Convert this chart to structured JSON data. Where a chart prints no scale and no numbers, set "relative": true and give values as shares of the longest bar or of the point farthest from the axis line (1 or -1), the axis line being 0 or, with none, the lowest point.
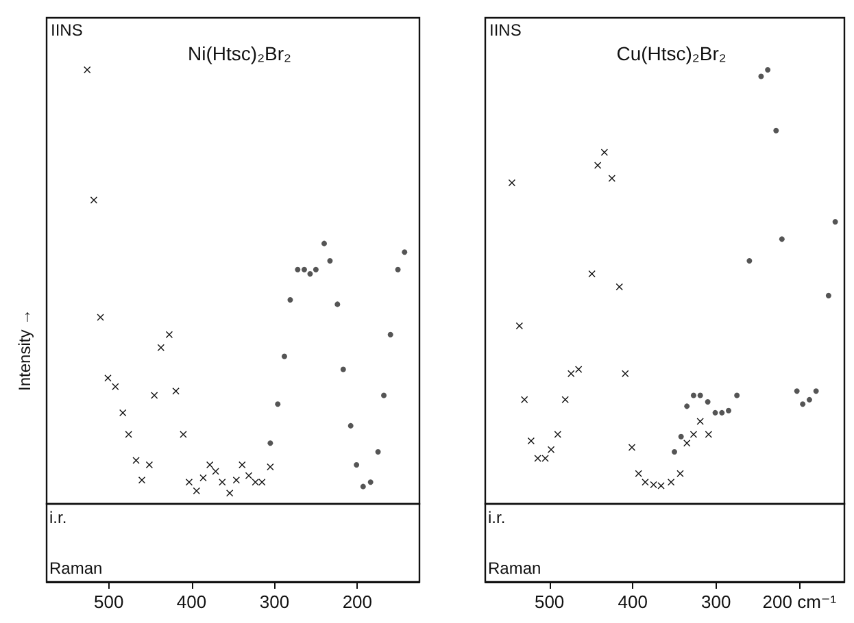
{
  "chart_data": [
    {
      "type": "scatter",
      "title": "Ni(Htsc)₂Br₂",
      "ylabel": "Intensity →",
      "relative": true,
      "tick_labels": "x",
      "grid": false,
      "annotations": [
        "IINS",
        "i.r.",
        "Raman"
      ],
      "xlim": [
        575,
        125
      ],
      "xticks": [
        500,
        400,
        300,
        200
      ],
      "series": [
        {
          "color": "#111111",
          "marker": "cross",
          "x": [
            526,
            518,
            510,
            501,
            492,
            483,
            476,
            467,
            460,
            451,
            445,
            437,
            427,
            419,
            410,
            403,
            394,
            386,
            378,
            371,
            363,
            354,
            346,
            339,
            331,
            323,
            315,
            305
          ],
          "values": [
            1.0,
            0.7,
            0.43,
            0.29,
            0.27,
            0.21,
            0.16,
            0.1,
            0.055,
            0.09,
            0.25,
            0.36,
            0.39,
            0.26,
            0.16,
            0.05,
            0.03,
            0.06,
            0.09,
            0.075,
            0.05,
            0.025,
            0.055,
            0.09,
            0.065,
            0.05,
            0.05,
            0.085
          ]
        },
        {
          "color": "#555555",
          "marker": "circle",
          "x": [
            305,
            296,
            288,
            281,
            272,
            264,
            257,
            250,
            240,
            233,
            224,
            217,
            208,
            201,
            193,
            184,
            175,
            168,
            160,
            151,
            143
          ],
          "values": [
            0.14,
            0.23,
            0.34,
            0.47,
            0.54,
            0.54,
            0.53,
            0.54,
            0.6,
            0.56,
            0.46,
            0.31,
            0.18,
            0.09,
            0.04,
            0.05,
            0.12,
            0.25,
            0.39,
            0.54,
            0.58
          ]
        }
      ]
    },
    {
      "type": "scatter",
      "title": "Cu(Htsc)₂Br₂",
      "relative": true,
      "tick_labels": "x",
      "grid": false,
      "annotations": [
        "IINS",
        "i.r.",
        "Raman"
      ],
      "xlim": [
        577,
        146
      ],
      "xticks": [
        500,
        400,
        300,
        {
          "value": 200,
          "label": "200 cm⁻¹"
        }
      ],
      "series": [
        {
          "color": "#111111",
          "marker": "cross",
          "x": [
            545,
            536,
            530,
            522,
            514,
            505,
            498,
            490,
            481,
            474,
            465,
            449,
            442,
            434,
            425,
            416,
            409,
            401,
            393,
            385,
            375,
            366,
            354,
            343,
            335,
            327,
            319,
            309
          ],
          "values": [
            0.74,
            0.41,
            0.24,
            0.145,
            0.105,
            0.105,
            0.125,
            0.16,
            0.24,
            0.3,
            0.31,
            0.53,
            0.78,
            0.81,
            0.75,
            0.5,
            0.3,
            0.13,
            0.07,
            0.05,
            0.044,
            0.042,
            0.05,
            0.07,
            0.14,
            0.16,
            0.19,
            0.16
          ]
        },
        {
          "color": "#555555",
          "marker": "circle",
          "x": [
            350,
            342,
            335,
            327,
            319,
            310,
            301,
            293,
            285,
            275,
            260,
            246,
            238,
            228,
            221,
            203,
            196,
            188,
            180,
            165,
            157
          ],
          "values": [
            0.12,
            0.155,
            0.225,
            0.25,
            0.25,
            0.235,
            0.21,
            0.21,
            0.215,
            0.25,
            0.56,
            0.985,
            1.0,
            0.86,
            0.61,
            0.26,
            0.23,
            0.24,
            0.26,
            0.48,
            0.65
          ]
        }
      ]
    }
  ]
}
